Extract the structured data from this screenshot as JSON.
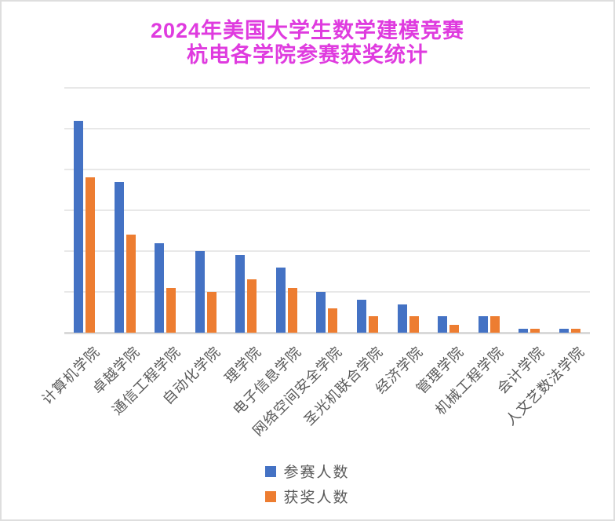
{
  "title": {
    "line1": "2024年美国大学生数学建模竞赛",
    "line2": "杭电各学院参赛获奖统计",
    "color": "#df3bdf"
  },
  "legend": {
    "position": "bottom",
    "items": [
      {
        "label": "参赛人数",
        "color": "#4472c4"
      },
      {
        "label": "获奖人数",
        "color": "#ed7d31"
      }
    ]
  },
  "chart_data": {
    "type": "bar",
    "title": "2024年美国大学生数学建模竞赛 杭电各学院参赛获奖统计",
    "categories": [
      "计算机学院",
      "卓越学院",
      "通信工程学院",
      "自动化学院",
      "理学院",
      "电子信息学院",
      "网络空间安全学院",
      "圣光机联合学院",
      "经济学院",
      "管理学院",
      "机械工程学院",
      "会计学院",
      "人文艺数法学院"
    ],
    "series": [
      {
        "name": "参赛人数",
        "color": "#4472c4",
        "values": [
          104,
          74,
          44,
          40,
          38,
          32,
          20,
          16,
          14,
          8,
          8,
          2,
          2
        ]
      },
      {
        "name": "获奖人数",
        "color": "#ed7d31",
        "values": [
          76,
          48,
          22,
          20,
          26,
          22,
          12,
          8,
          8,
          4,
          8,
          2,
          2
        ]
      }
    ],
    "xlabel": "",
    "ylabel": "",
    "ylim": [
      0,
      120
    ],
    "gridline_interval": 20,
    "grid": true,
    "y_tick_labels_visible": false,
    "legend_position": "bottom",
    "x_label_rotation_deg": 45
  },
  "colors": {
    "background": "#ffffff",
    "frame_border": "#dedede",
    "gridline": "#e8e8e8",
    "axis_line": "#d9d9d9",
    "axis_label_text": "#595959"
  }
}
